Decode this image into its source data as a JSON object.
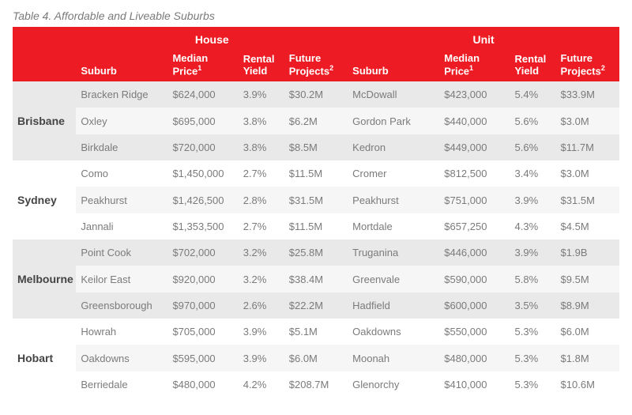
{
  "title": "Table 4. Affordable and Liveable Suburbs",
  "header": {
    "group_house": "House",
    "group_unit": "Unit",
    "suburb": "Suburb",
    "median_price_html": "Median Price",
    "rental_yield": "Rental Yield",
    "future_projects_html": "Future Projects",
    "sup1": "1",
    "sup2": "2"
  },
  "colors": {
    "header_bg": "#ed1c24",
    "header_fg": "#ffffff",
    "band_a": "#e9e9e9",
    "band_b": "#ffffff",
    "row_alt": "#f6f6f6",
    "text": "#7b7b7b",
    "city_text": "#444444"
  },
  "cities": [
    {
      "name": "Brisbane",
      "band": "a",
      "rows": [
        {
          "h_suburb": "Bracken Ridge",
          "h_med": "$624,000",
          "h_yield": "3.9%",
          "h_fut": "$30.2M",
          "u_suburb": "McDowall",
          "u_med": "$423,000",
          "u_yield": "5.4%",
          "u_fut": "$33.9M"
        },
        {
          "h_suburb": "Oxley",
          "h_med": "$695,000",
          "h_yield": "3.8%",
          "h_fut": "$6.2M",
          "u_suburb": "Gordon Park",
          "u_med": "$440,000",
          "u_yield": "5.6%",
          "u_fut": "$3.0M"
        },
        {
          "h_suburb": "Birkdale",
          "h_med": "$720,000",
          "h_yield": "3.8%",
          "h_fut": "$8.5M",
          "u_suburb": "Kedron",
          "u_med": "$449,000",
          "u_yield": "5.6%",
          "u_fut": "$11.7M"
        }
      ]
    },
    {
      "name": "Sydney",
      "band": "b",
      "rows": [
        {
          "h_suburb": "Como",
          "h_med": "$1,450,000",
          "h_yield": "2.7%",
          "h_fut": "$11.5M",
          "u_suburb": "Cromer",
          "u_med": "$812,500",
          "u_yield": "3.4%",
          "u_fut": "$3.0M"
        },
        {
          "h_suburb": "Peakhurst",
          "h_med": "$1,426,500",
          "h_yield": "2.8%",
          "h_fut": "$31.5M",
          "u_suburb": "Peakhurst",
          "u_med": "$751,000",
          "u_yield": "3.9%",
          "u_fut": "$31.5M"
        },
        {
          "h_suburb": "Jannali",
          "h_med": "$1,353,500",
          "h_yield": "2.7%",
          "h_fut": "$11.5M",
          "u_suburb": "Mortdale",
          "u_med": "$657,250",
          "u_yield": "4.3%",
          "u_fut": "$4.5M"
        }
      ]
    },
    {
      "name": "Melbourne",
      "band": "a",
      "rows": [
        {
          "h_suburb": "Point Cook",
          "h_med": "$702,000",
          "h_yield": "3.2%",
          "h_fut": "$25.8M",
          "u_suburb": "Truganina",
          "u_med": "$446,000",
          "u_yield": "3.9%",
          "u_fut": "$1.9B"
        },
        {
          "h_suburb": "Keilor East",
          "h_med": "$920,000",
          "h_yield": "3.2%",
          "h_fut": "$38.4M",
          "u_suburb": "Greenvale",
          "u_med": "$590,000",
          "u_yield": "5.8%",
          "u_fut": "$9.5M"
        },
        {
          "h_suburb": "Greensborough",
          "h_med": "$970,000",
          "h_yield": "2.6%",
          "h_fut": "$22.2M",
          "u_suburb": "Hadfield",
          "u_med": "$600,000",
          "u_yield": "3.5%",
          "u_fut": "$8.9M"
        }
      ]
    },
    {
      "name": "Hobart",
      "band": "b",
      "rows": [
        {
          "h_suburb": "Howrah",
          "h_med": "$705,000",
          "h_yield": "3.9%",
          "h_fut": "$5.1M",
          "u_suburb": "Oakdowns",
          "u_med": "$550,000",
          "u_yield": "5.3%",
          "u_fut": "$6.0M"
        },
        {
          "h_suburb": "Oakdowns",
          "h_med": "$595,000",
          "h_yield": "3.9%",
          "h_fut": "$6.0M",
          "u_suburb": "Moonah",
          "u_med": "$480,000",
          "u_yield": "5.3%",
          "u_fut": "$1.8M"
        },
        {
          "h_suburb": "Berriedale",
          "h_med": "$480,000",
          "h_yield": "4.2%",
          "h_fut": "$208.7M",
          "u_suburb": "Glenorchy",
          "u_med": "$410,000",
          "u_yield": "5.3%",
          "u_fut": "$10.6M"
        }
      ]
    }
  ]
}
